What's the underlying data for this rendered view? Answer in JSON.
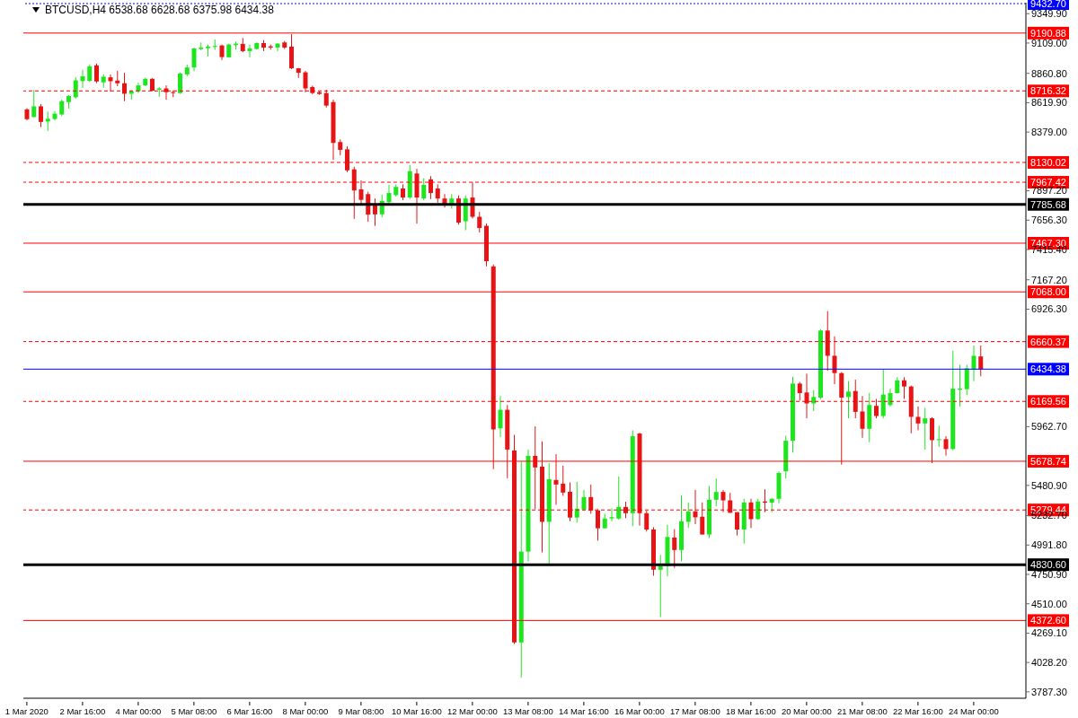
{
  "chart_data": {
    "type": "candlestick",
    "title": "BTCUSD,H4  6538.68 6628.68 6375.98 6434.38",
    "categories": [
      "1 Mar 2020",
      null,
      null,
      null,
      null,
      null,
      null,
      null,
      "2 Mar 16:00",
      null,
      null,
      null,
      null,
      null,
      null,
      null,
      "4 Mar 00:00",
      null,
      null,
      null,
      null,
      null,
      null,
      null,
      "5 Mar 08:00",
      null,
      null,
      null,
      null,
      null,
      null,
      null,
      "6 Mar 16:00",
      null,
      null,
      null,
      null,
      null,
      null,
      null,
      "8 Mar 00:00",
      null,
      null,
      null,
      null,
      null,
      null,
      null,
      "9 Mar 08:00",
      null,
      null,
      null,
      null,
      null,
      null,
      null,
      "10 Mar 16:00",
      null,
      null,
      null,
      null,
      null,
      null,
      null,
      "12 Mar 00:00",
      null,
      null,
      null,
      null,
      null,
      null,
      null,
      "13 Mar 08:00",
      null,
      null,
      null,
      null,
      null,
      null,
      null,
      "14 Mar 16:00",
      null,
      null,
      null,
      null,
      null,
      null,
      null,
      "16 Mar 00:00",
      null,
      null,
      null,
      null,
      null,
      null,
      null,
      "17 Mar 08:00",
      null,
      null,
      null,
      null,
      null,
      null,
      null,
      "18 Mar 16:00",
      null,
      null,
      null,
      null,
      null,
      null,
      null,
      "20 Mar 00:00",
      null,
      null,
      null,
      null,
      null,
      null,
      null,
      "21 Mar 08:00",
      null,
      null,
      null,
      null,
      null,
      null,
      null,
      "22 Mar 16:00",
      null,
      null,
      null,
      null,
      null,
      null,
      null,
      "24 Mar 00:00",
      null,
      null,
      null,
      null,
      null,
      null,
      null
    ],
    "ohlc": [
      [
        8565,
        8575,
        8475,
        8485
      ],
      [
        8502,
        8725,
        8500,
        8590
      ],
      [
        8590,
        8608,
        8420,
        8462
      ],
      [
        8466,
        8547,
        8388,
        8488
      ],
      [
        8486,
        8550,
        8474,
        8530
      ],
      [
        8523,
        8645,
        8510,
        8633
      ],
      [
        8625,
        8682,
        8572,
        8674
      ],
      [
        8664,
        8828,
        8654,
        8803
      ],
      [
        8797,
        8889,
        8742,
        8836
      ],
      [
        8799,
        8933,
        8790,
        8918
      ],
      [
        8926,
        8940,
        8780,
        8794
      ],
      [
        8787,
        8852,
        8742,
        8833
      ],
      [
        8828,
        8852,
        8711,
        8796
      ],
      [
        8801,
        8882,
        8755,
        8779
      ],
      [
        8779,
        8865,
        8633,
        8693
      ],
      [
        8693,
        8723,
        8645,
        8713
      ],
      [
        8713,
        8784,
        8699,
        8762
      ],
      [
        8762,
        8825,
        8755,
        8816
      ],
      [
        8816,
        8820,
        8715,
        8718
      ],
      [
        8726,
        8747,
        8669,
        8737
      ],
      [
        8737,
        8762,
        8645,
        8706
      ],
      [
        8706,
        8720,
        8665,
        8699
      ],
      [
        8699,
        8867,
        8692,
        8860
      ],
      [
        8852,
        8933,
        8836,
        8909
      ],
      [
        8909,
        9072,
        8877,
        9065
      ],
      [
        9060,
        9114,
        9050,
        9072
      ],
      [
        9067,
        9097,
        8999,
        9080
      ],
      [
        9077,
        9138,
        9053,
        9085
      ],
      [
        9089,
        9097,
        8970,
        8994
      ],
      [
        8992,
        9104,
        8990,
        9097
      ],
      [
        9092,
        9121,
        9055,
        9104
      ],
      [
        9102,
        9151,
        9033,
        9043
      ],
      [
        9043,
        9097,
        8992,
        9065
      ],
      [
        9060,
        9114,
        9055,
        9109
      ],
      [
        9109,
        9133,
        9043,
        9072
      ],
      [
        9082,
        9097,
        9055,
        9072
      ],
      [
        9072,
        9109,
        9043,
        9104
      ],
      [
        9114,
        9126,
        9060,
        9072
      ],
      [
        9080,
        9182,
        8895,
        8902
      ],
      [
        8902,
        8905,
        8823,
        8865
      ],
      [
        8869,
        8880,
        8706,
        8737
      ],
      [
        8748,
        8760,
        8690,
        8699
      ],
      [
        8706,
        8711,
        8684,
        8692
      ],
      [
        8699,
        8726,
        8580,
        8596
      ],
      [
        8625,
        8645,
        8150,
        8290
      ],
      [
        8297,
        8319,
        8188,
        8233
      ],
      [
        8237,
        8263,
        8050,
        8065
      ],
      [
        8073,
        8095,
        7667,
        7900
      ],
      [
        7909,
        7983,
        7779,
        7823
      ],
      [
        7870,
        7890,
        7643,
        7702
      ],
      [
        7779,
        7834,
        7610,
        7704
      ],
      [
        7704,
        7865,
        7680,
        7815
      ],
      [
        7804,
        7946,
        7790,
        7879
      ],
      [
        7862,
        7950,
        7850,
        7929
      ],
      [
        7916,
        7950,
        7820,
        7842
      ],
      [
        7842,
        8110,
        7830,
        8058
      ],
      [
        8039,
        8077,
        7628,
        7842
      ],
      [
        7834,
        8000,
        7820,
        7946
      ],
      [
        7991,
        8017,
        7830,
        7879
      ],
      [
        7916,
        7950,
        7800,
        7834
      ],
      [
        7834,
        7870,
        7760,
        7790
      ],
      [
        7779,
        7870,
        7750,
        7834
      ],
      [
        7834,
        7860,
        7620,
        7636
      ],
      [
        7647,
        7860,
        7573,
        7834
      ],
      [
        7842,
        7966,
        7670,
        7684
      ],
      [
        7684,
        7724,
        7555,
        7592
      ],
      [
        7610,
        7628,
        7277,
        7320
      ],
      [
        7277,
        7293,
        5615,
        5940
      ],
      [
        5949,
        6214,
        5876,
        6101
      ],
      [
        6101,
        6140,
        5539,
        5775
      ],
      [
        5767,
        5895,
        4180,
        4193
      ],
      [
        4193,
        5676,
        3905,
        4938
      ],
      [
        4938,
        5774,
        4858,
        5723
      ],
      [
        5723,
        5965,
        5285,
        5628
      ],
      [
        5635,
        5842,
        4931,
        5182
      ],
      [
        5182,
        5664,
        4836,
        5532
      ],
      [
        5525,
        5737,
        5322,
        5488
      ],
      [
        5495,
        5642,
        5395,
        5422
      ],
      [
        5429,
        5505,
        5187,
        5217
      ],
      [
        5217,
        5510,
        5175,
        5290
      ],
      [
        5283,
        5444,
        5273,
        5385
      ],
      [
        5385,
        5488,
        5248,
        5275
      ],
      [
        5275,
        5285,
        5028,
        5129
      ],
      [
        5129,
        5248,
        5129,
        5209
      ],
      [
        5210,
        5292,
        5187,
        5220
      ],
      [
        5209,
        5554,
        5200,
        5304
      ],
      [
        5304,
        5347,
        5212,
        5253
      ],
      [
        5253,
        5933,
        5146,
        5884
      ],
      [
        5906,
        5913,
        5151,
        5253
      ],
      [
        5253,
        5273,
        5102,
        5119
      ],
      [
        5119,
        5138,
        4740,
        4789
      ],
      [
        4789,
        4911,
        4401,
        4821
      ],
      [
        4821,
        5158,
        4735,
        5058
      ],
      [
        5053,
        5122,
        4804,
        4951
      ],
      [
        4951,
        5400,
        4858,
        5187
      ],
      [
        5182,
        5341,
        5131,
        5268
      ],
      [
        5268,
        5444,
        5163,
        5219
      ],
      [
        5224,
        5341,
        5078,
        5078
      ],
      [
        5078,
        5476,
        5048,
        5363
      ],
      [
        5363,
        5537,
        5310,
        5427
      ],
      [
        5427,
        5444,
        5261,
        5358
      ],
      [
        5358,
        5420,
        5256,
        5256
      ],
      [
        5261,
        5261,
        5070,
        5119
      ],
      [
        5119,
        5371,
        5004,
        5341
      ],
      [
        5341,
        5371,
        5131,
        5204
      ],
      [
        5204,
        5371,
        5200,
        5349
      ],
      [
        5349,
        5449,
        5261,
        5339
      ],
      [
        5339,
        5376,
        5261,
        5371
      ],
      [
        5371,
        5596,
        5334,
        5583
      ],
      [
        5596,
        5889,
        5537,
        5847
      ],
      [
        5847,
        6373,
        5750,
        6316
      ],
      [
        6316,
        6329,
        6177,
        6238
      ],
      [
        6243,
        6397,
        6031,
        6153
      ],
      [
        6153,
        6263,
        6091,
        6206
      ],
      [
        6201,
        6760,
        6190,
        6751
      ],
      [
        6751,
        6910,
        6421,
        6544
      ],
      [
        6544,
        6703,
        6311,
        6402
      ],
      [
        6402,
        6410,
        5651,
        6201
      ],
      [
        6206,
        6336,
        6031,
        6250
      ],
      [
        6255,
        6348,
        6031,
        6084
      ],
      [
        6087,
        6214,
        5871,
        5945
      ],
      [
        5945,
        6238,
        5835,
        6140
      ],
      [
        6133,
        6190,
        6031,
        6050
      ],
      [
        6050,
        6434,
        6031,
        6226
      ],
      [
        6140,
        6274,
        6128,
        6238
      ],
      [
        6238,
        6368,
        6235,
        6343
      ],
      [
        6343,
        6368,
        6190,
        6292
      ],
      [
        6292,
        6300,
        5908,
        6043
      ],
      [
        6043,
        6128,
        5933,
        5989
      ],
      [
        5989,
        6116,
        5774,
        6031
      ],
      [
        6031,
        6040,
        5664,
        5852
      ],
      [
        5852,
        5970,
        5798,
        5860
      ],
      [
        5860,
        5884,
        5725,
        5779
      ],
      [
        5779,
        6585,
        5769,
        6274
      ],
      [
        6265,
        6470,
        6128,
        6274
      ],
      [
        6270,
        6470,
        6221,
        6441
      ],
      [
        6434,
        6629,
        6336,
        6544
      ],
      [
        6538.68,
        6628.68,
        6375.98,
        6434.38
      ],
      null,
      null,
      null,
      null,
      null,
      null
    ],
    "colors": [
      "#e61414",
      "#1ee61e",
      "#e61414",
      "#1ee61e",
      "#1ee61e",
      "#1ee61e",
      "#1ee61e",
      "#1ee61e",
      "#1ee61e",
      "#1ee61e",
      "#e61414",
      "#1ee61e",
      "#e61414",
      "#e61414",
      "#e61414",
      "#1ee61e",
      "#1ee61e",
      "#1ee61e",
      "#e61414",
      "#1ee61e",
      "#e61414",
      "#e61414",
      "#1ee61e",
      "#1ee61e",
      "#1ee61e",
      "#1ee61e",
      "#1ee61e",
      "#1ee61e",
      "#e61414",
      "#1ee61e",
      "#1ee61e",
      "#e61414",
      "#1ee61e",
      "#1ee61e",
      "#e61414",
      "#e61414",
      "#1ee61e",
      "#e61414",
      "#e61414",
      "#e61414",
      "#e61414",
      "#e61414",
      "#e61414",
      "#e61414",
      "#e61414",
      "#e61414",
      "#e61414",
      "#e61414",
      "#e61414",
      "#e61414",
      "#e61414",
      "#1ee61e",
      "#1ee61e",
      "#1ee61e",
      "#e61414",
      "#1ee61e",
      "#e61414",
      "#1ee61e",
      "#e61414",
      "#e61414",
      "#e61414",
      "#1ee61e",
      "#e61414",
      "#1ee61e",
      "#e61414",
      "#e61414",
      "#e61414",
      "#e61414",
      "#1ee61e",
      "#e61414",
      "#e61414",
      "#1ee61e",
      "#1ee61e",
      "#e61414",
      "#e61414",
      "#1ee61e",
      "#e61414",
      "#e61414",
      "#e61414",
      "#1ee61e",
      "#1ee61e",
      "#e61414",
      "#e61414",
      "#1ee61e",
      "#1ee61e",
      "#1ee61e",
      "#e61414",
      "#1ee61e",
      "#e61414",
      "#e61414",
      "#e61414",
      "#1ee61e",
      "#1ee61e",
      "#e61414",
      "#1ee61e",
      "#1ee61e",
      "#e61414",
      "#e61414",
      "#1ee61e",
      "#1ee61e",
      "#e61414",
      "#e61414",
      "#e61414",
      "#1ee61e",
      "#e61414",
      "#1ee61e",
      "#e61414",
      "#1ee61e",
      "#1ee61e",
      "#1ee61e",
      "#1ee61e",
      "#e61414",
      "#e61414",
      "#1ee61e",
      "#1ee61e",
      "#e61414",
      "#e61414",
      "#e61414",
      "#1ee61e",
      "#e61414",
      "#e61414",
      "#1ee61e",
      "#e61414",
      "#1ee61e",
      "#1ee61e",
      "#1ee61e",
      "#e61414",
      "#e61414",
      "#e61414",
      "#1ee61e",
      "#e61414",
      "#1ee61e",
      "#e61414",
      "#1ee61e",
      "#1ee61e",
      "#1ee61e",
      "#1ee61e",
      "#e61414",
      null,
      null,
      null,
      null,
      null,
      null
    ],
    "ylim": [
      3735,
      9440
    ],
    "yticks": [
      {
        "value": 3787.3,
        "label": "3787.30"
      },
      {
        "value": 4028.2,
        "label": "4028.20"
      },
      {
        "value": 4269.1,
        "label": "4269.10"
      },
      {
        "value": 4510,
        "label": "4510.00"
      },
      {
        "value": 4750.9,
        "label": "4750.90"
      },
      {
        "value": 4991.8,
        "label": "4991.80"
      },
      {
        "value": 5232.7,
        "label": "5232.70"
      },
      {
        "value": 5480.9,
        "label": "5480.90"
      },
      {
        "value": 5962.7,
        "label": "5962.70"
      },
      {
        "value": 6926.3,
        "label": "6926.30"
      },
      {
        "value": 7167.2,
        "label": "7167.20"
      },
      {
        "value": 7415.4,
        "label": "7415.40"
      },
      {
        "value": 7656.3,
        "label": "7656.30"
      },
      {
        "value": 7897.2,
        "label": "7897.20"
      },
      {
        "value": 8379,
        "label": "8379.00"
      },
      {
        "value": 8619.9,
        "label": "8619.90"
      },
      {
        "value": 8860.8,
        "label": "8860.80"
      },
      {
        "value": 9109,
        "label": "9109.00"
      },
      {
        "value": 9349.9,
        "label": "9349.90"
      }
    ],
    "ref_lines": [
      {
        "axis": "y",
        "value": 9432.7,
        "label": "9432.70",
        "color": "#0000ff",
        "line_style": "dotted"
      },
      {
        "axis": "y",
        "value": 9190.88,
        "label": "9190.88",
        "color": "#ff0000",
        "line_style": "solid"
      },
      {
        "axis": "y",
        "value": 8716.32,
        "label": "8716.32",
        "color": "#ff0000",
        "line_style": "dashed"
      },
      {
        "axis": "y",
        "value": 8130.02,
        "label": "8130.02",
        "color": "#ff0000",
        "line_style": "dashed"
      },
      {
        "axis": "y",
        "value": 7967.42,
        "label": "7967.42",
        "color": "#ff0000",
        "line_style": "dashed"
      },
      {
        "axis": "y",
        "value": 7785.68,
        "label": "7785.68",
        "color": "#000000",
        "line_style": "solid"
      },
      {
        "axis": "y",
        "value": 7467.3,
        "label": "7467.30",
        "color": "#ff0000",
        "line_style": "solid"
      },
      {
        "axis": "y",
        "value": 7068,
        "label": "7068.00",
        "color": "#ff0000",
        "line_style": "solid"
      },
      {
        "axis": "y",
        "value": 6660.37,
        "label": "6660.37",
        "color": "#ff0000",
        "line_style": "dashed"
      },
      {
        "axis": "y",
        "value": 6434.38,
        "label": "6434.38",
        "color": "#0000ff",
        "line_style": "solid"
      },
      {
        "axis": "y",
        "value": 6169.56,
        "label": "6169.56",
        "color": "#ff0000",
        "line_style": "dashed"
      },
      {
        "axis": "y",
        "value": 5678.74,
        "label": "5678.74",
        "color": "#ff0000",
        "line_style": "solid"
      },
      {
        "axis": "y",
        "value": 5279.44,
        "label": "5279.44",
        "color": "#ff0000",
        "line_style": "dashed"
      },
      {
        "axis": "y",
        "value": 4830.6,
        "label": "4830.60",
        "color": "#000000",
        "line_style": "solid"
      },
      {
        "axis": "y",
        "value": 4372.6,
        "label": "4372.60",
        "color": "#ff0000",
        "line_style": "solid"
      }
    ]
  }
}
